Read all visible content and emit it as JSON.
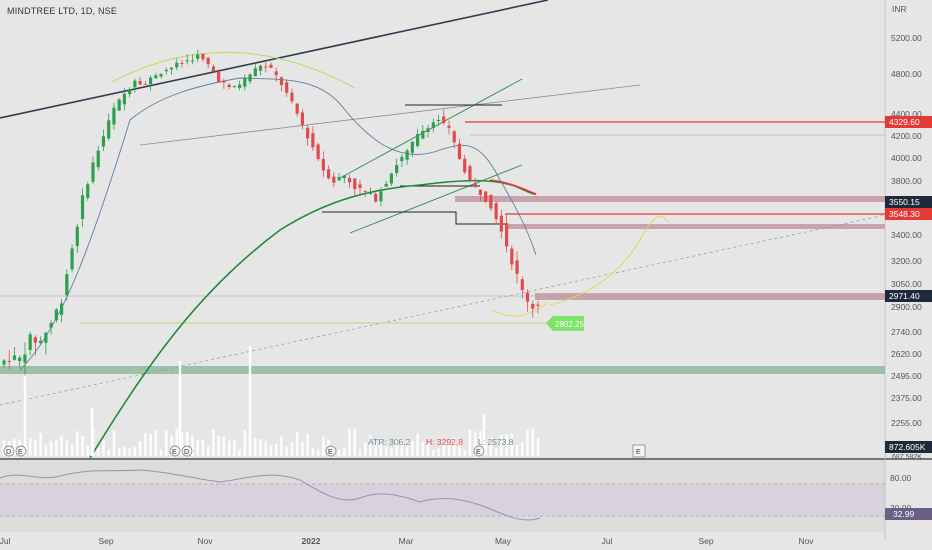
{
  "header": {
    "symbol_line": "MINDTREE LTD, 1D, NSE"
  },
  "chart_data": {
    "type": "candlestick",
    "currency": "INR",
    "y_ticks": [
      "5200.00",
      "4800.00",
      "4400.00",
      "4200.00",
      "4000.00",
      "3800.00",
      "3600.00",
      "3400.00",
      "3200.00",
      "3050.00",
      "2900.00",
      "2740.00",
      "2620.00",
      "2495.00",
      "2375.00",
      "2255.00"
    ],
    "x_ticks": [
      "Jul",
      "Sep",
      "Nov",
      "2022",
      "Mar",
      "May",
      "Jul",
      "Sep",
      "Nov"
    ],
    "price_labels": [
      {
        "value": "4329.60",
        "color": "#e53935"
      },
      {
        "value": "3550.15",
        "color": "#1e2a3a"
      },
      {
        "value": "3548.30",
        "color": "#e53935"
      },
      {
        "value": "2971.40",
        "color": "#1e2a3a"
      }
    ],
    "annotation_label": "2802.25",
    "stats": {
      "atr": "ATR: 306.2",
      "high": "H: 3292.8",
      "low": "L: 2573.8"
    },
    "volume_label": "872.605K",
    "volume_label_2": "687.582K",
    "rsi": {
      "ticks": [
        "80.00",
        "20.00"
      ],
      "value": "32.99"
    },
    "approx_close_series": [
      2600,
      2590,
      2700,
      2690,
      2800,
      2950,
      3300,
      3650,
      3950,
      4200,
      4450,
      4600,
      4750,
      4700,
      4800,
      4850,
      4900,
      4950,
      5000,
      4900,
      4750,
      4650,
      4700,
      4800,
      4900,
      4850,
      4700,
      4500,
      4300,
      4100,
      3900,
      3800,
      3850,
      3750,
      3700,
      3650,
      3800,
      3950,
      4050,
      4200,
      4300,
      4350,
      4250,
      4000,
      3800,
      3700,
      3600,
      3450,
      3200,
      3000,
      2900,
      2950
    ]
  },
  "markers": {
    "dividend_badge": "D",
    "earnings_badge": "E"
  },
  "colors": {
    "up": "#2e9e4f",
    "down": "#e04b4b",
    "ma_fast": "#1e8a3a",
    "resist": "#e53935",
    "zone": "#c9a3ab",
    "support_zone": "#8fb89a"
  }
}
